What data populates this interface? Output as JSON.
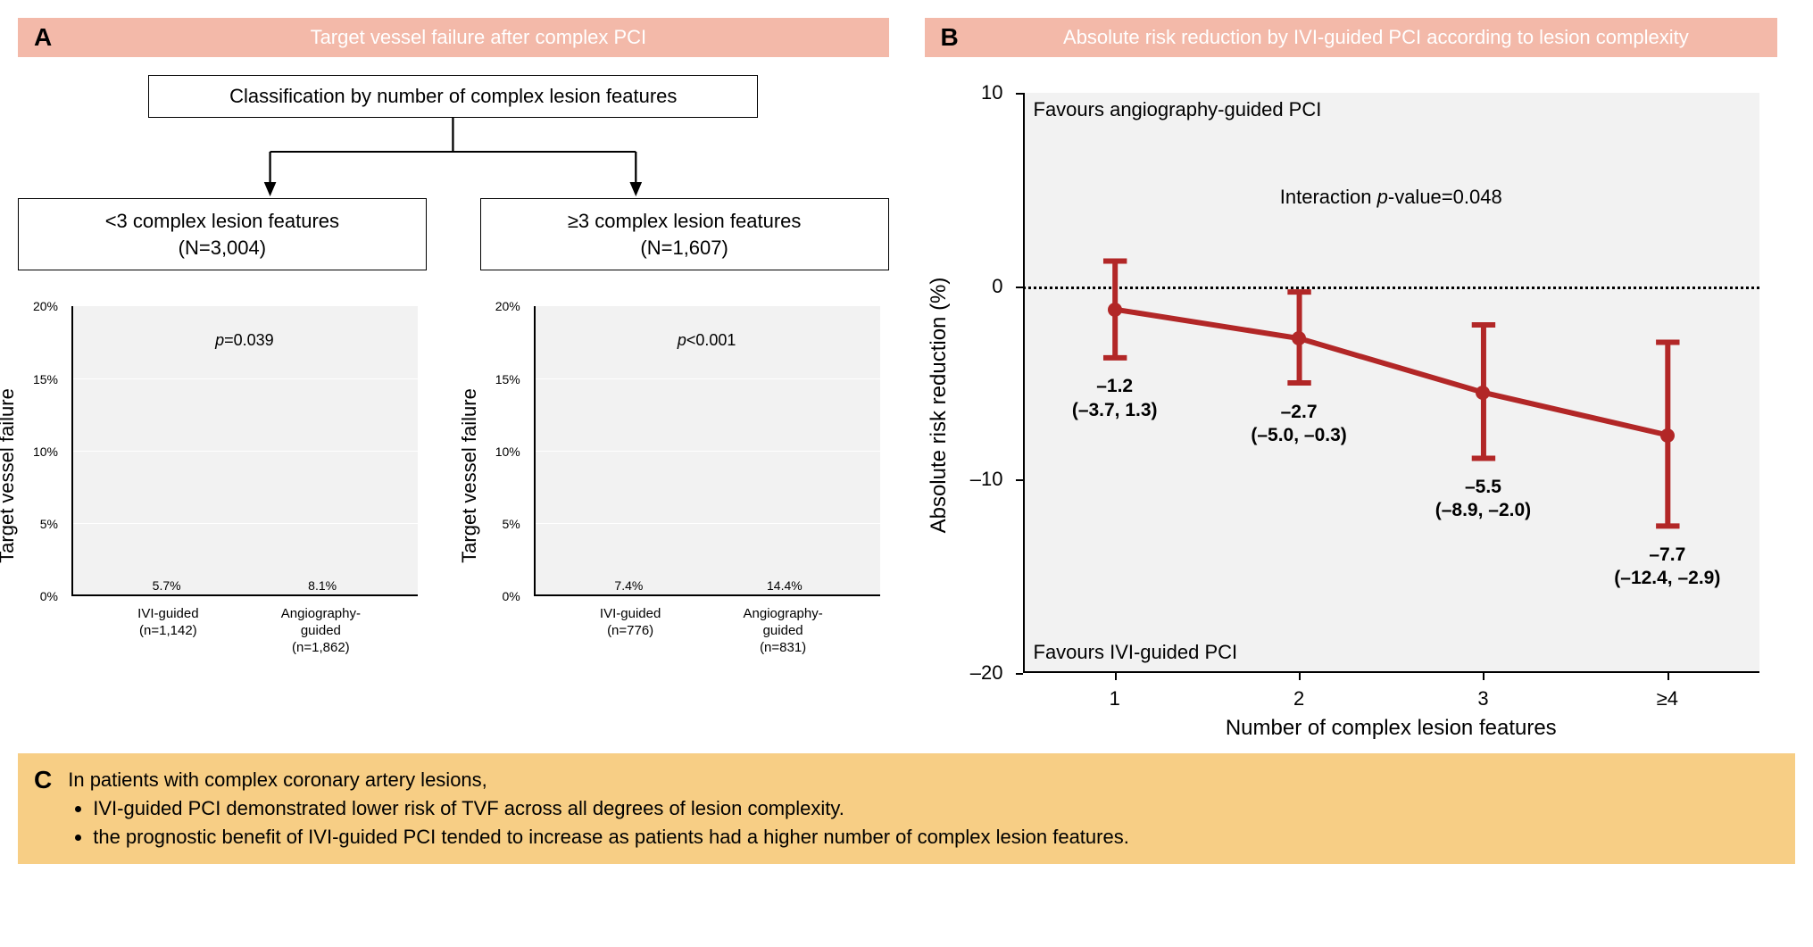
{
  "colors": {
    "header_letter_bg": "#f3b9a9",
    "header_title_bg_A": "#f3b9a9",
    "header_title_bg_B": "#f3b9a9",
    "plot_bg": "#f2f2f2",
    "grid": "#ffffff",
    "bar_ivi": "#b9bde3",
    "bar_angio": "#a61c1c",
    "line": "#b22727",
    "marker": "#b22727",
    "panel_c_bg": "#f7ce85"
  },
  "panelA": {
    "letter": "A",
    "title": "Target vessel failure after complex PCI",
    "flow_top": "Classification by number of complex lesion features",
    "branch_left": {
      "label": "<3 complex lesion features",
      "n": "(N=3,004)"
    },
    "branch_right": {
      "label": "≥3 complex lesion features",
      "n": "(N=1,607)"
    },
    "y_label": "Target vessel failure",
    "y_max": 20,
    "y_ticks": [
      "0%",
      "5%",
      "10%",
      "15%",
      "20%"
    ],
    "chart_left": {
      "p_label_prefix": "p",
      "p_value": "=0.039",
      "bars": [
        {
          "group": "IVI-guided",
          "n": "(n=1,142)",
          "value": 5.7,
          "label": "5.7%",
          "color_key": "bar_ivi"
        },
        {
          "group": "Angiography-guided",
          "n": "(n=1,862)",
          "value": 8.1,
          "label": "8.1%",
          "color_key": "bar_angio"
        }
      ]
    },
    "chart_right": {
      "p_label_prefix": "p",
      "p_value": "<0.001",
      "bars": [
        {
          "group": "IVI-guided",
          "n": "(n=776)",
          "value": 7.4,
          "label": "7.4%",
          "color_key": "bar_ivi"
        },
        {
          "group": "Angiography-guided",
          "n": "(n=831)",
          "value": 14.4,
          "label": "14.4%",
          "color_key": "bar_angio"
        }
      ]
    }
  },
  "panelB": {
    "letter": "B",
    "title": "Absolute risk reduction by IVI-guided PCI according to lesion complexity",
    "y_label": "Absolute risk reduction (%)",
    "x_label": "Number of complex lesion features",
    "y_min": -20,
    "y_max": 10,
    "y_ticks": [
      -20,
      -10,
      0,
      10
    ],
    "x_ticks": [
      "1",
      "2",
      "3",
      "≥4"
    ],
    "interaction_label": "Interaction p-value=0.048",
    "interaction_label_italic_part": "p",
    "favour_top": "Favours angiography-guided PCI",
    "favour_bottom": "Favours IVI-guided PCI",
    "points": [
      {
        "x": 1,
        "y": -1.2,
        "lo": -3.7,
        "hi": 1.3,
        "label_main": "–1.2",
        "label_ci": "(–3.7, 1.3)"
      },
      {
        "x": 2,
        "y": -2.7,
        "lo": -5.0,
        "hi": -0.3,
        "label_main": "–2.7",
        "label_ci": "(–5.0, –0.3)"
      },
      {
        "x": 3,
        "y": -5.5,
        "lo": -8.9,
        "hi": -2.0,
        "label_main": "–5.5",
        "label_ci": "(–8.9, –2.0)"
      },
      {
        "x": 4,
        "y": -7.7,
        "lo": -12.4,
        "hi": -2.9,
        "label_main": "–7.7",
        "label_ci": "(–12.4, –2.9)"
      }
    ],
    "line_width": 3,
    "marker_radius": 8,
    "err_cap_width": 16
  },
  "panelC": {
    "letter": "C",
    "intro": "In patients with complex coronary artery lesions,",
    "bullets": [
      "IVI-guided PCI demonstrated lower risk of TVF across all degrees of lesion complexity.",
      "the prognostic benefit of IVI-guided PCI tended to increase as patients had a higher number of complex lesion features."
    ]
  }
}
